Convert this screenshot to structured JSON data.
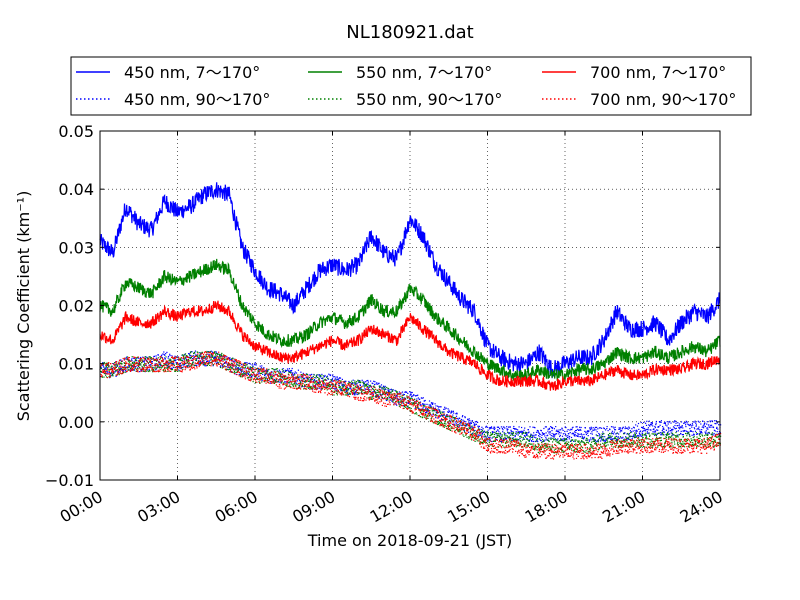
{
  "chart_data": {
    "type": "line",
    "title": "NL180921.dat",
    "xlabel": "Time on 2018-09-21 (JST)",
    "ylabel": "Scattering Coefficient (km⁻¹)",
    "xlim": [
      0,
      24
    ],
    "ylim": [
      -0.01,
      0.05
    ],
    "x_ticks": [
      0,
      3,
      6,
      9,
      12,
      15,
      18,
      21,
      24
    ],
    "x_tick_labels": [
      "00:00",
      "03:00",
      "06:00",
      "09:00",
      "12:00",
      "15:00",
      "18:00",
      "21:00",
      "24:00"
    ],
    "y_ticks": [
      -0.01,
      0.0,
      0.01,
      0.02,
      0.03,
      0.04,
      0.05
    ],
    "y_tick_labels": [
      "−0.01",
      "0.00",
      "0.01",
      "0.02",
      "0.03",
      "0.04",
      "0.05"
    ],
    "grid": true,
    "legend_position": "top, above plot, 3 columns",
    "series": [
      {
        "name": "450 nm, 7～170°",
        "color": "#0000ff",
        "style": "solid",
        "x": [
          0,
          0.5,
          1,
          1.5,
          2,
          2.5,
          3,
          3.5,
          4,
          4.5,
          5,
          5.5,
          6,
          6.5,
          7,
          7.5,
          8,
          8.5,
          9,
          9.5,
          10,
          10.5,
          11,
          11.5,
          12,
          12.5,
          13,
          13.5,
          14,
          14.5,
          15,
          15.5,
          16,
          16.5,
          17,
          17.5,
          18,
          18.5,
          19,
          19.5,
          20,
          20.5,
          21,
          21.5,
          22,
          22.5,
          23,
          23.5,
          24
        ],
        "y": [
          0.031,
          0.029,
          0.037,
          0.034,
          0.033,
          0.038,
          0.036,
          0.037,
          0.039,
          0.04,
          0.039,
          0.03,
          0.026,
          0.023,
          0.022,
          0.02,
          0.023,
          0.026,
          0.027,
          0.026,
          0.027,
          0.032,
          0.029,
          0.028,
          0.035,
          0.032,
          0.027,
          0.024,
          0.021,
          0.019,
          0.013,
          0.011,
          0.01,
          0.01,
          0.012,
          0.009,
          0.01,
          0.011,
          0.011,
          0.014,
          0.019,
          0.016,
          0.016,
          0.017,
          0.014,
          0.017,
          0.019,
          0.018,
          0.021
        ]
      },
      {
        "name": "450 nm, 90～170°",
        "color": "#0000ff",
        "style": "dotted",
        "x": [
          0,
          0.5,
          1,
          1.5,
          2,
          2.5,
          3,
          3.5,
          4,
          4.5,
          5,
          5.5,
          6,
          6.5,
          7,
          7.5,
          8,
          8.5,
          9,
          9.5,
          10,
          10.5,
          11,
          11.5,
          12,
          12.5,
          13,
          13.5,
          14,
          14.5,
          15,
          15.5,
          16,
          16.5,
          17,
          17.5,
          18,
          18.5,
          19,
          19.5,
          20,
          20.5,
          21,
          21.5,
          22,
          22.5,
          23,
          23.5,
          24
        ],
        "y": [
          0.009,
          0.009,
          0.01,
          0.01,
          0.01,
          0.011,
          0.01,
          0.011,
          0.011,
          0.011,
          0.01,
          0.009,
          0.009,
          0.008,
          0.008,
          0.008,
          0.007,
          0.007,
          0.007,
          0.006,
          0.006,
          0.006,
          0.005,
          0.004,
          0.004,
          0.003,
          0.002,
          0.001,
          0.0,
          -0.001,
          -0.002,
          -0.002,
          -0.002,
          -0.002,
          -0.002,
          -0.002,
          -0.002,
          -0.002,
          -0.002,
          -0.002,
          -0.002,
          -0.002,
          -0.001,
          -0.001,
          -0.001,
          -0.001,
          -0.001,
          -0.001,
          -0.001
        ]
      },
      {
        "name": "550 nm, 7～170°",
        "color": "#008000",
        "style": "solid",
        "x": [
          0,
          0.5,
          1,
          1.5,
          2,
          2.5,
          3,
          3.5,
          4,
          4.5,
          5,
          5.5,
          6,
          6.5,
          7,
          7.5,
          8,
          8.5,
          9,
          9.5,
          10,
          10.5,
          11,
          11.5,
          12,
          12.5,
          13,
          13.5,
          14,
          14.5,
          15,
          15.5,
          16,
          16.5,
          17,
          17.5,
          18,
          18.5,
          19,
          19.5,
          20,
          20.5,
          21,
          21.5,
          22,
          22.5,
          23,
          23.5,
          24
        ],
        "y": [
          0.02,
          0.019,
          0.024,
          0.023,
          0.022,
          0.025,
          0.024,
          0.025,
          0.026,
          0.027,
          0.026,
          0.02,
          0.017,
          0.015,
          0.014,
          0.014,
          0.015,
          0.017,
          0.018,
          0.017,
          0.018,
          0.021,
          0.019,
          0.019,
          0.023,
          0.021,
          0.018,
          0.016,
          0.014,
          0.012,
          0.01,
          0.009,
          0.008,
          0.008,
          0.009,
          0.008,
          0.008,
          0.009,
          0.009,
          0.01,
          0.012,
          0.011,
          0.011,
          0.012,
          0.011,
          0.012,
          0.013,
          0.012,
          0.014
        ]
      },
      {
        "name": "550 nm, 90～170°",
        "color": "#008000",
        "style": "dotted",
        "x": [
          0,
          0.5,
          1,
          1.5,
          2,
          2.5,
          3,
          3.5,
          4,
          4.5,
          5,
          5.5,
          6,
          6.5,
          7,
          7.5,
          8,
          8.5,
          9,
          9.5,
          10,
          10.5,
          11,
          11.5,
          12,
          12.5,
          13,
          13.5,
          14,
          14.5,
          15,
          15.5,
          16,
          16.5,
          17,
          17.5,
          18,
          18.5,
          19,
          19.5,
          20,
          20.5,
          21,
          21.5,
          22,
          22.5,
          23,
          23.5,
          24
        ],
        "y": [
          0.009,
          0.009,
          0.01,
          0.01,
          0.01,
          0.01,
          0.01,
          0.011,
          0.011,
          0.011,
          0.01,
          0.009,
          0.008,
          0.008,
          0.008,
          0.007,
          0.007,
          0.007,
          0.006,
          0.006,
          0.006,
          0.005,
          0.005,
          0.004,
          0.003,
          0.002,
          0.001,
          0.0,
          -0.001,
          -0.002,
          -0.003,
          -0.003,
          -0.003,
          -0.003,
          -0.004,
          -0.004,
          -0.004,
          -0.004,
          -0.004,
          -0.003,
          -0.003,
          -0.003,
          -0.003,
          -0.003,
          -0.003,
          -0.003,
          -0.003,
          -0.003,
          -0.003
        ]
      },
      {
        "name": "700 nm, 7～170°",
        "color": "#ff0000",
        "style": "solid",
        "x": [
          0,
          0.5,
          1,
          1.5,
          2,
          2.5,
          3,
          3.5,
          4,
          4.5,
          5,
          5.5,
          6,
          6.5,
          7,
          7.5,
          8,
          8.5,
          9,
          9.5,
          10,
          10.5,
          11,
          11.5,
          12,
          12.5,
          13,
          13.5,
          14,
          14.5,
          15,
          15.5,
          16,
          16.5,
          17,
          17.5,
          18,
          18.5,
          19,
          19.5,
          20,
          20.5,
          21,
          21.5,
          22,
          22.5,
          23,
          23.5,
          24
        ],
        "y": [
          0.015,
          0.014,
          0.018,
          0.017,
          0.017,
          0.019,
          0.018,
          0.019,
          0.019,
          0.02,
          0.019,
          0.015,
          0.013,
          0.012,
          0.011,
          0.011,
          0.012,
          0.013,
          0.014,
          0.013,
          0.014,
          0.016,
          0.015,
          0.014,
          0.018,
          0.016,
          0.014,
          0.012,
          0.011,
          0.01,
          0.008,
          0.007,
          0.007,
          0.007,
          0.007,
          0.006,
          0.007,
          0.007,
          0.007,
          0.008,
          0.009,
          0.008,
          0.008,
          0.009,
          0.009,
          0.009,
          0.01,
          0.01,
          0.011
        ]
      },
      {
        "name": "700 nm, 90～170°",
        "color": "#ff0000",
        "style": "dotted",
        "x": [
          0,
          0.5,
          1,
          1.5,
          2,
          2.5,
          3,
          3.5,
          4,
          4.5,
          5,
          5.5,
          6,
          6.5,
          7,
          7.5,
          8,
          8.5,
          9,
          9.5,
          10,
          10.5,
          11,
          11.5,
          12,
          12.5,
          13,
          13.5,
          14,
          14.5,
          15,
          15.5,
          16,
          16.5,
          17,
          17.5,
          18,
          18.5,
          19,
          19.5,
          20,
          20.5,
          21,
          21.5,
          22,
          22.5,
          23,
          23.5,
          24
        ],
        "y": [
          0.009,
          0.009,
          0.01,
          0.01,
          0.01,
          0.01,
          0.01,
          0.01,
          0.011,
          0.011,
          0.01,
          0.009,
          0.008,
          0.008,
          0.007,
          0.007,
          0.007,
          0.006,
          0.006,
          0.006,
          0.005,
          0.005,
          0.004,
          0.004,
          0.003,
          0.002,
          0.001,
          0.0,
          -0.001,
          -0.002,
          -0.004,
          -0.004,
          -0.004,
          -0.005,
          -0.005,
          -0.005,
          -0.005,
          -0.005,
          -0.005,
          -0.005,
          -0.004,
          -0.004,
          -0.004,
          -0.004,
          -0.004,
          -0.004,
          -0.004,
          -0.004,
          -0.003
        ]
      }
    ]
  }
}
